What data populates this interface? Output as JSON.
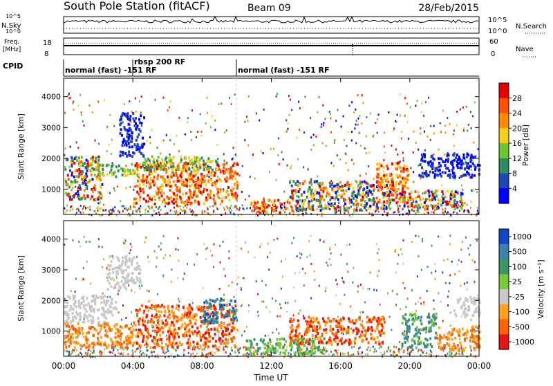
{
  "header": {
    "station": "South Pole Station (fitACF)",
    "beam": "Beam 09",
    "date": "28/Feb/2015"
  },
  "noise_panel": {
    "left_label": "N.Sky",
    "right_label": "N.Search",
    "left_ticks": [
      "10^5",
      "10^0"
    ],
    "right_ticks": [
      "10^5",
      "10^0"
    ]
  },
  "freq_panel": {
    "left_label_1": "Freq.",
    "left_label_2": "[MHz]",
    "right_label": "Nave",
    "left_ticks": [
      "18",
      "8"
    ],
    "right_ticks": [
      "60",
      "0"
    ]
  },
  "cpid_panel": {
    "label": "CPID",
    "segments": [
      {
        "text": "normal (fast) -151 RF",
        "start_hour": 0
      },
      {
        "text": "rbsp 200 RF",
        "start_hour": 4
      },
      {
        "text": "normal (fast) -151 RF",
        "start_hour": 10
      }
    ]
  },
  "chart_data": [
    {
      "type": "heatmap",
      "name": "power",
      "ylabel": "Slant Range [km]",
      "xlabel": "",
      "ylim": [
        180,
        4600
      ],
      "yticks": [
        "1000",
        "2000",
        "3000",
        "4000"
      ],
      "colorbar_label": "Power [dB]",
      "colorbar_ticks": [
        "4",
        "8",
        "12",
        "16",
        "20",
        "24",
        "28"
      ],
      "colorbar_range": [
        0,
        32
      ],
      "colors": [
        "#0000ff",
        "#1e46b4",
        "#2d8c64",
        "#69c832",
        "#f0d21e",
        "#ff8c00",
        "#ff5000",
        "#e60000"
      ],
      "regions": [
        {
          "x": [
            0.0,
            2.2
          ],
          "y": [
            700,
            2100
          ],
          "level": "mixed"
        },
        {
          "x": [
            1.5,
            4.4
          ],
          "y": [
            1450,
            1850
          ],
          "level": "medium"
        },
        {
          "x": [
            3.2,
            4.6
          ],
          "y": [
            2100,
            3500
          ],
          "level": "low"
        },
        {
          "x": [
            4.0,
            10.0
          ],
          "y": [
            550,
            1900
          ],
          "level": "high"
        },
        {
          "x": [
            4.5,
            8.8
          ],
          "y": [
            1600,
            2100
          ],
          "level": "medium"
        },
        {
          "x": [
            10.8,
            13.0
          ],
          "y": [
            250,
            700
          ],
          "level": "high"
        },
        {
          "x": [
            13.0,
            19.0
          ],
          "y": [
            350,
            1300
          ],
          "level": "mixed"
        },
        {
          "x": [
            18.0,
            20.0
          ],
          "y": [
            600,
            1900
          ],
          "level": "high"
        },
        {
          "x": [
            19.5,
            23.0
          ],
          "y": [
            400,
            1000
          ],
          "level": "mixed"
        },
        {
          "x": [
            20.5,
            24.0
          ],
          "y": [
            1400,
            2200
          ],
          "level": "low"
        }
      ]
    },
    {
      "type": "heatmap",
      "name": "velocity",
      "ylabel": "Slant Range [km]",
      "xlabel": "Time UT",
      "ylim": [
        180,
        4600
      ],
      "yticks": [
        "1000",
        "2000",
        "3000",
        "4000"
      ],
      "xticks": [
        "00:00",
        "04:00",
        "08:00",
        "12:00",
        "16:00",
        "20:00",
        "00:00"
      ],
      "xrange": [
        0,
        24
      ],
      "colorbar_label": "Velocity [m s⁻¹]",
      "colorbar_ticks": [
        "1000",
        "500",
        "100",
        "25",
        "-25",
        "-100",
        "-500",
        "-1000"
      ],
      "colors": [
        "#1446c8",
        "#3c82aa",
        "#3c9664",
        "#78c83c",
        "#c8c8c8",
        "#ffa01e",
        "#ff6400",
        "#e61414"
      ],
      "regions": [
        {
          "x": [
            0.0,
            3.0
          ],
          "y": [
            1300,
            2200
          ],
          "level": "low_speed"
        },
        {
          "x": [
            0.0,
            4.0
          ],
          "y": [
            500,
            1300
          ],
          "level": "neg_medium"
        },
        {
          "x": [
            2.5,
            4.4
          ],
          "y": [
            2400,
            3500
          ],
          "level": "low_speed"
        },
        {
          "x": [
            4.0,
            10.0
          ],
          "y": [
            500,
            1900
          ],
          "level": "neg_high"
        },
        {
          "x": [
            8.0,
            10.0
          ],
          "y": [
            1300,
            2100
          ],
          "level": "pos_high"
        },
        {
          "x": [
            10.5,
            15.0
          ],
          "y": [
            250,
            800
          ],
          "level": "pos_low"
        },
        {
          "x": [
            13.0,
            18.5
          ],
          "y": [
            600,
            1500
          ],
          "level": "neg_high"
        },
        {
          "x": [
            19.5,
            21.5
          ],
          "y": [
            500,
            1600
          ],
          "level": "pos_medium"
        },
        {
          "x": [
            21.5,
            24.0
          ],
          "y": [
            400,
            1200
          ],
          "level": "neg_medium"
        },
        {
          "x": [
            22.5,
            24.0
          ],
          "y": [
            1500,
            2200
          ],
          "level": "low_speed"
        }
      ]
    }
  ]
}
